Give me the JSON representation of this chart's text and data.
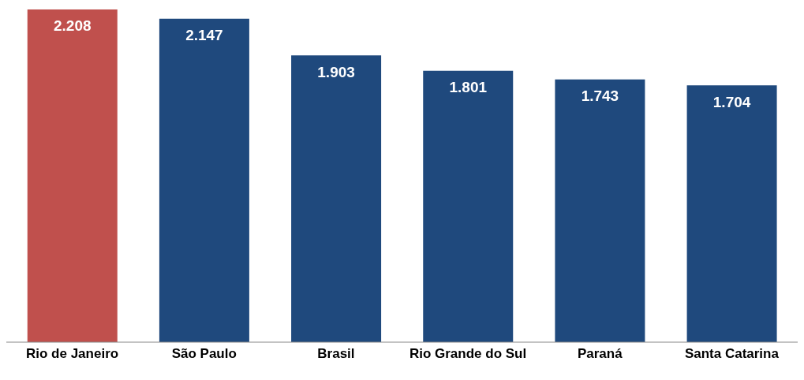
{
  "chart_data": {
    "type": "bar",
    "categories": [
      "Rio de Janeiro",
      "São Paulo",
      "Brasil",
      "Rio Grande do Sul",
      "Paraná",
      "Santa Catarina"
    ],
    "values": [
      2.208,
      2.147,
      1.903,
      1.801,
      1.743,
      1.704
    ],
    "colors": [
      "#c0504d",
      "#1f497d",
      "#1f497d",
      "#1f497d",
      "#1f497d",
      "#1f497d"
    ],
    "data_labels": true
  }
}
